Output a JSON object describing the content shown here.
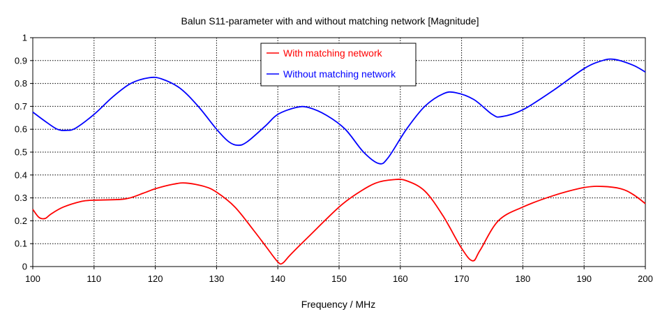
{
  "chart_data": {
    "type": "line",
    "title": "Balun S11-parameter with and without matching network [Magnitude]",
    "xlabel": "Frequency / MHz",
    "ylabel": "",
    "xlim": [
      100,
      200
    ],
    "ylim": [
      0,
      1
    ],
    "xticks": [
      "100",
      "110",
      "120",
      "130",
      "140",
      "150",
      "160",
      "170",
      "180",
      "190",
      "200"
    ],
    "yticks": [
      "0",
      "0.1",
      "0.2",
      "0.3",
      "0.4",
      "0.5",
      "0.6",
      "0.7",
      "0.8",
      "0.9",
      "1"
    ],
    "grid": true,
    "legend_position": "top-center",
    "series": [
      {
        "name": "With matching network",
        "color": "#ff0000",
        "points": [
          [
            100,
            0.25
          ],
          [
            101,
            0.215
          ],
          [
            102,
            0.21
          ],
          [
            103,
            0.23
          ],
          [
            105,
            0.26
          ],
          [
            108,
            0.285
          ],
          [
            110,
            0.29
          ],
          [
            115,
            0.295
          ],
          [
            118,
            0.32
          ],
          [
            120,
            0.34
          ],
          [
            123,
            0.36
          ],
          [
            125,
            0.365
          ],
          [
            128,
            0.35
          ],
          [
            130,
            0.325
          ],
          [
            133,
            0.26
          ],
          [
            136,
            0.16
          ],
          [
            138,
            0.09
          ],
          [
            140,
            0.02
          ],
          [
            140.8,
            0.015
          ],
          [
            142,
            0.05
          ],
          [
            145,
            0.13
          ],
          [
            150,
            0.26
          ],
          [
            153,
            0.32
          ],
          [
            156,
            0.365
          ],
          [
            159,
            0.38
          ],
          [
            161,
            0.375
          ],
          [
            164,
            0.33
          ],
          [
            167,
            0.22
          ],
          [
            170,
            0.08
          ],
          [
            171.8,
            0.025
          ],
          [
            173,
            0.07
          ],
          [
            176,
            0.2
          ],
          [
            180,
            0.26
          ],
          [
            185,
            0.31
          ],
          [
            190,
            0.345
          ],
          [
            193,
            0.35
          ],
          [
            196,
            0.34
          ],
          [
            198,
            0.315
          ],
          [
            200,
            0.275
          ]
        ]
      },
      {
        "name": "Without matching network",
        "color": "#0000ff",
        "points": [
          [
            100,
            0.675
          ],
          [
            102,
            0.635
          ],
          [
            104,
            0.6
          ],
          [
            105.5,
            0.595
          ],
          [
            107,
            0.605
          ],
          [
            110,
            0.665
          ],
          [
            113,
            0.74
          ],
          [
            116,
            0.8
          ],
          [
            119,
            0.825
          ],
          [
            121,
            0.82
          ],
          [
            124,
            0.78
          ],
          [
            127,
            0.7
          ],
          [
            130,
            0.6
          ],
          [
            132,
            0.545
          ],
          [
            133.5,
            0.53
          ],
          [
            135,
            0.545
          ],
          [
            138,
            0.615
          ],
          [
            140,
            0.665
          ],
          [
            143,
            0.695
          ],
          [
            145,
            0.695
          ],
          [
            148,
            0.66
          ],
          [
            151,
            0.6
          ],
          [
            154,
            0.5
          ],
          [
            156.5,
            0.45
          ],
          [
            158,
            0.475
          ],
          [
            161,
            0.6
          ],
          [
            164,
            0.7
          ],
          [
            167,
            0.755
          ],
          [
            169,
            0.76
          ],
          [
            172,
            0.73
          ],
          [
            175,
            0.665
          ],
          [
            176.5,
            0.655
          ],
          [
            180,
            0.685
          ],
          [
            185,
            0.77
          ],
          [
            190,
            0.865
          ],
          [
            193,
            0.9
          ],
          [
            195,
            0.905
          ],
          [
            198,
            0.88
          ],
          [
            200,
            0.85
          ]
        ]
      }
    ]
  }
}
